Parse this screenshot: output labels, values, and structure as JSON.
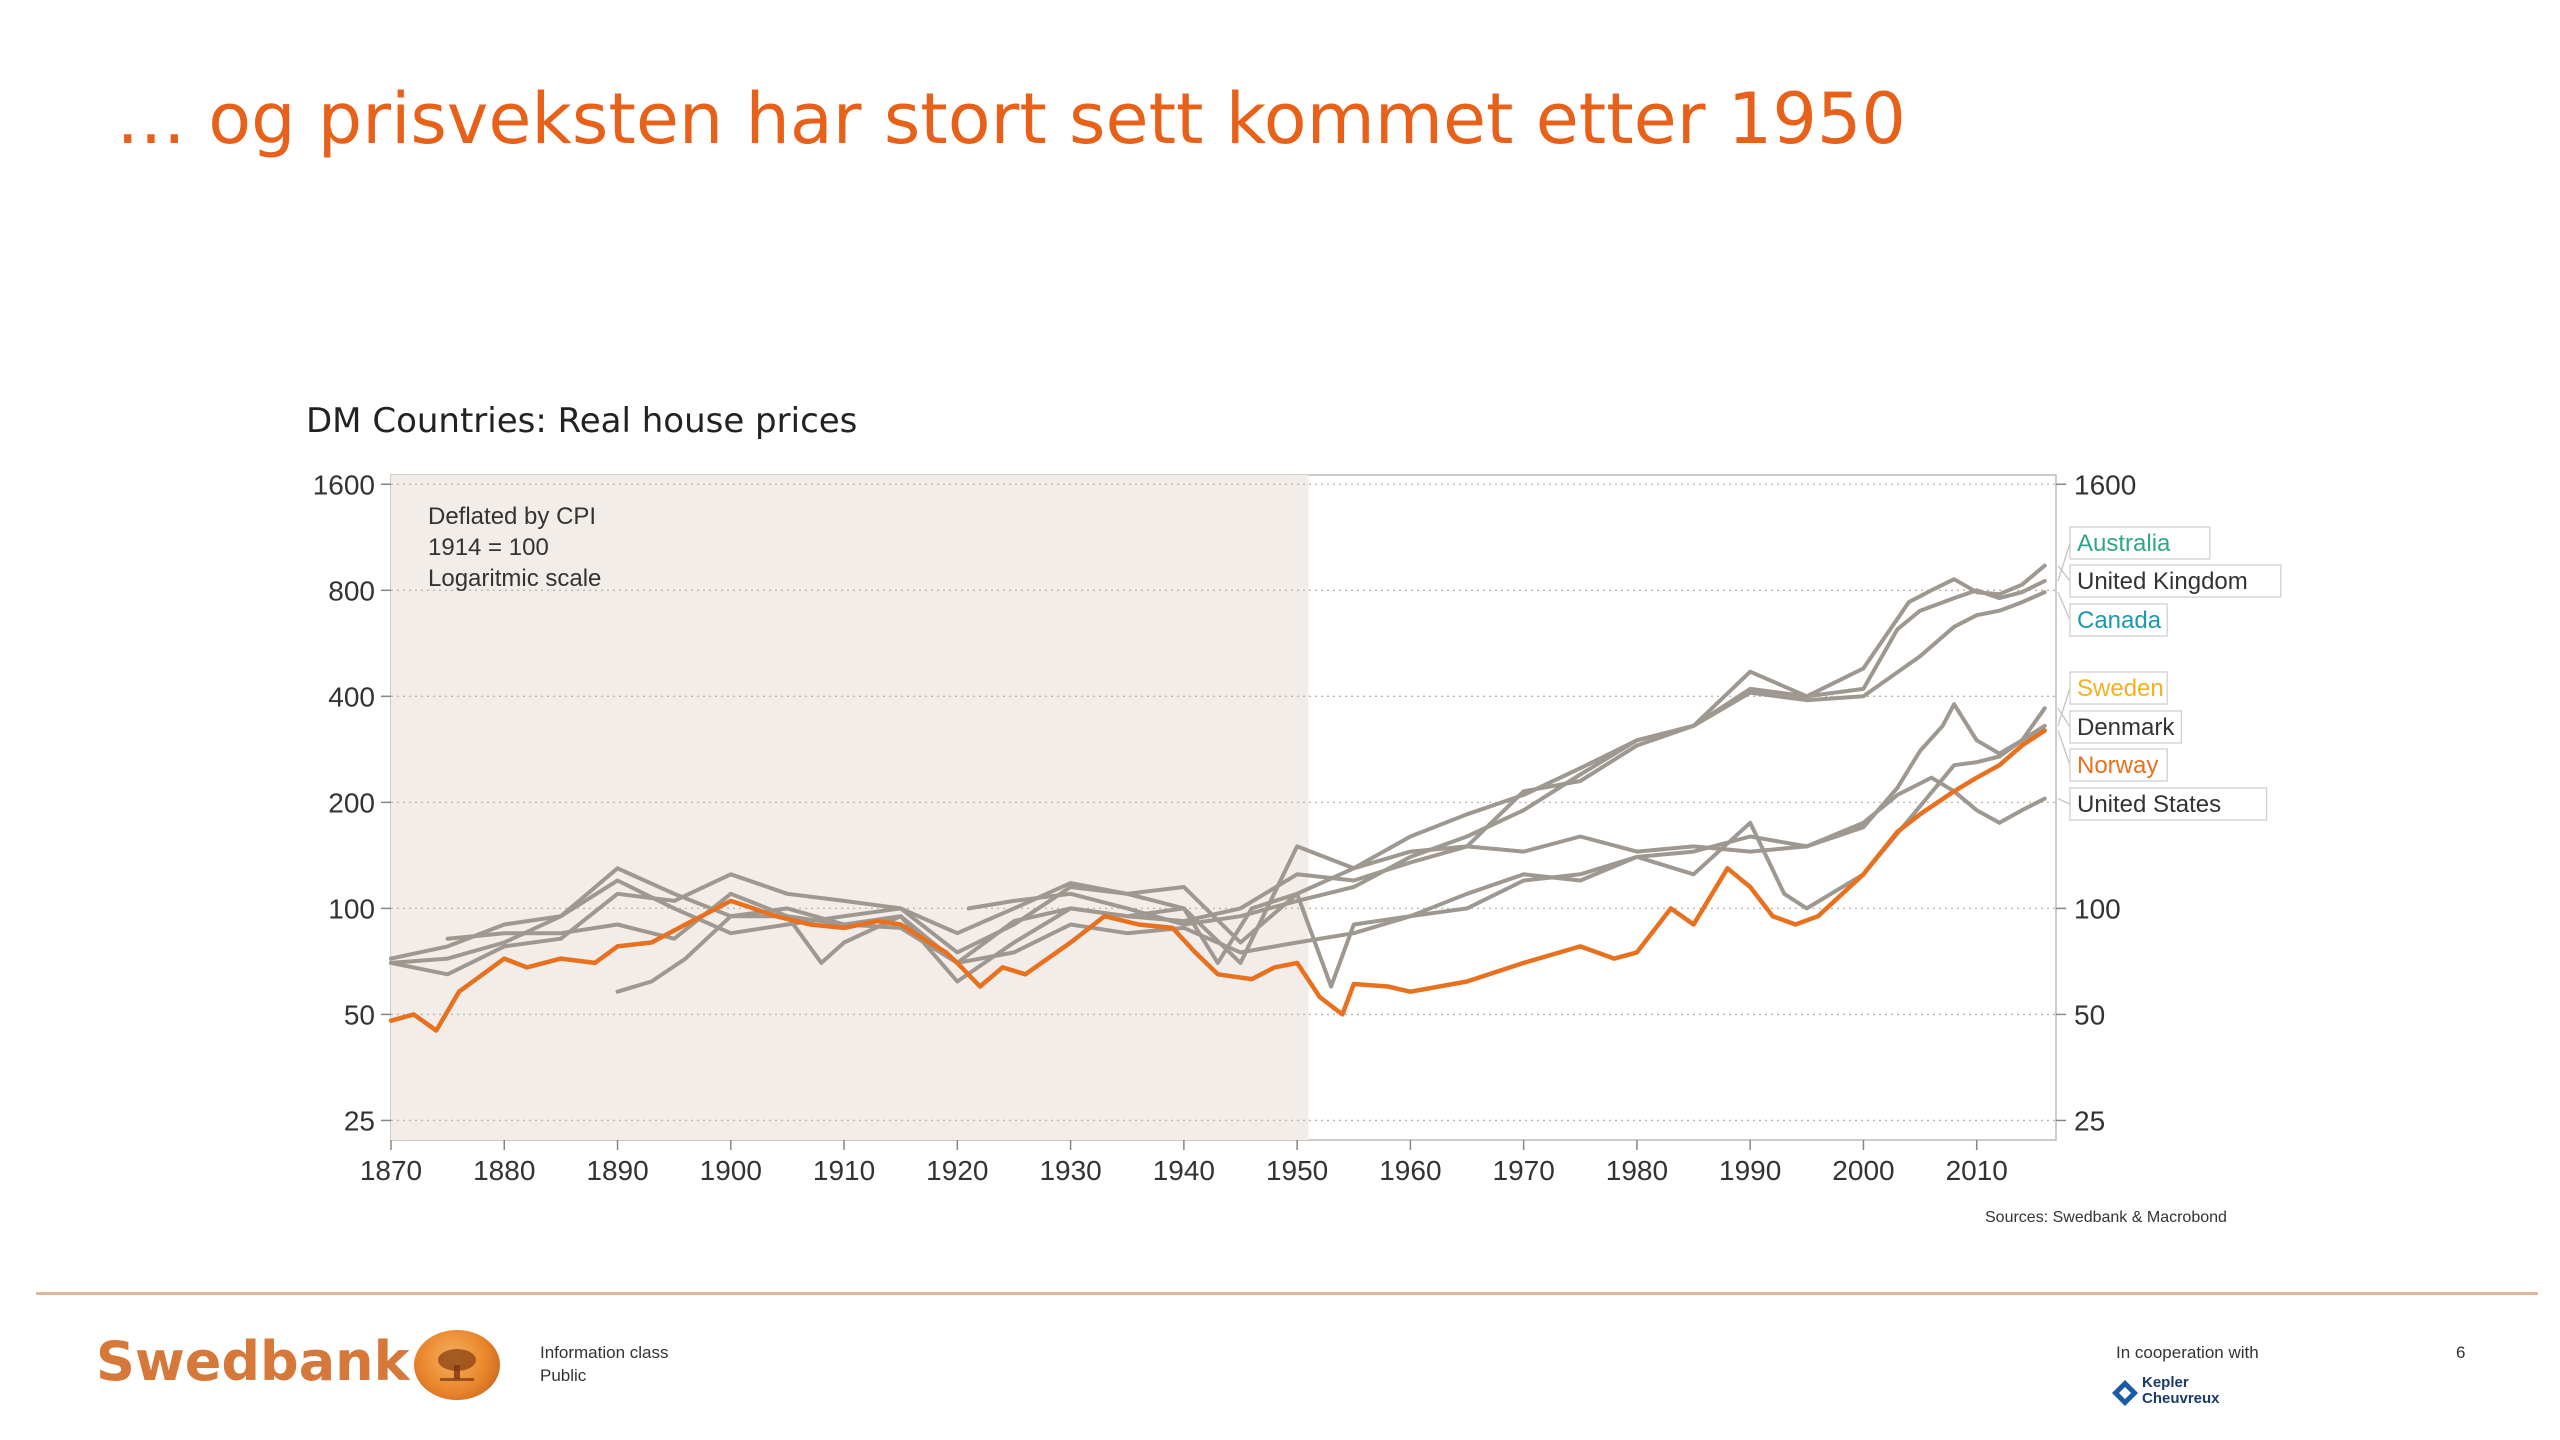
{
  "slide": {
    "title": "… og prisveksten har stort sett kommet etter 1950",
    "page_number": "6"
  },
  "footer": {
    "brand": "Swedbank",
    "info_class_label": "Information class",
    "info_class_value": "Public",
    "cooperation_label": "In cooperation with",
    "partner_name_1": "Kepler",
    "partner_name_2": "Cheuvreux"
  },
  "colors": {
    "title": "#e8611a",
    "norway": "#e8711f",
    "other_countries": "#9e9890",
    "shaded_period": "#f2ede8",
    "australia_label": "#2fa58a",
    "canada_label": "#1b9aaa",
    "sweden_label": "#f2b21f",
    "norway_label": "#e8711f"
  },
  "chart_data": {
    "type": "line",
    "title": "DM Countries: Real house prices",
    "annotation": [
      "Deflated by CPI",
      "1914 = 100",
      "Logaritmic scale"
    ],
    "source": "Sources: Swedbank & Macrobond",
    "xlim": [
      1870,
      2017
    ],
    "x_ticks": [
      1870,
      1880,
      1890,
      1900,
      1910,
      1920,
      1930,
      1940,
      1950,
      1960,
      1970,
      1980,
      1990,
      2000,
      2010
    ],
    "y_scale": "log",
    "ylim": [
      22,
      1700
    ],
    "y_ticks": [
      25,
      50,
      100,
      200,
      400,
      800,
      1600
    ],
    "y_ticks_right": [
      25,
      50,
      100,
      1600
    ],
    "shaded_region": [
      1870,
      1951
    ],
    "grid": "horizontal dotted",
    "legend_position": "right, labels boxed",
    "series": [
      {
        "name": "Australia",
        "x": [
          1870,
          1875,
          1880,
          1885,
          1890,
          1895,
          1900,
          1905,
          1910,
          1915,
          1920,
          1925,
          1930,
          1935,
          1940,
          1945,
          1950,
          1955,
          1960,
          1965,
          1970,
          1975,
          1980,
          1985,
          1990,
          1995,
          2000,
          2003,
          2005,
          2008,
          2010,
          2012,
          2014,
          2016
        ],
        "y": [
          70,
          72,
          80,
          95,
          120,
          100,
          85,
          90,
          95,
          100,
          75,
          90,
          115,
          110,
          100,
          70,
          150,
          130,
          160,
          185,
          210,
          250,
          300,
          330,
          420,
          400,
          420,
          620,
          700,
          760,
          800,
          760,
          790,
          850
        ]
      },
      {
        "name": "United Kingdom",
        "x": [
          1870,
          1875,
          1880,
          1885,
          1890,
          1895,
          1900,
          1905,
          1910,
          1915,
          1920,
          1925,
          1930,
          1935,
          1940,
          1945,
          1950,
          1955,
          1960,
          1965,
          1970,
          1975,
          1980,
          1985,
          1990,
          1995,
          2000,
          2004,
          2006,
          2008,
          2010,
          2012,
          2014,
          2016
        ],
        "y": [
          72,
          78,
          90,
          95,
          130,
          110,
          95,
          100,
          90,
          95,
          62,
          80,
          100,
          95,
          92,
          100,
          125,
          120,
          135,
          150,
          215,
          230,
          290,
          330,
          470,
          400,
          480,
          740,
          800,
          860,
          790,
          780,
          830,
          940
        ]
      },
      {
        "name": "Canada",
        "x": [
          1921,
          1925,
          1930,
          1935,
          1940,
          1945,
          1950,
          1955,
          1960,
          1965,
          1970,
          1975,
          1980,
          1985,
          1990,
          1995,
          2000,
          2005,
          2008,
          2010,
          2012,
          2014,
          2016
        ],
        "y": [
          100,
          105,
          110,
          100,
          90,
          95,
          105,
          115,
          140,
          160,
          190,
          240,
          300,
          330,
          410,
          390,
          400,
          520,
          630,
          680,
          700,
          740,
          790
        ]
      },
      {
        "name": "Sweden",
        "x": [
          1875,
          1880,
          1885,
          1890,
          1895,
          1900,
          1905,
          1910,
          1915,
          1920,
          1925,
          1930,
          1935,
          1940,
          1945,
          1950,
          1955,
          1960,
          1965,
          1970,
          1975,
          1980,
          1985,
          1990,
          1993,
          1995,
          2000,
          2005,
          2008,
          2010,
          2012,
          2014,
          2016
        ],
        "y": [
          82,
          85,
          85,
          90,
          82,
          110,
          95,
          90,
          88,
          70,
          75,
          90,
          85,
          88,
          75,
          80,
          85,
          95,
          110,
          125,
          120,
          140,
          125,
          175,
          110,
          100,
          125,
          195,
          255,
          260,
          270,
          300,
          330
        ]
      },
      {
        "name": "Denmark",
        "x": [
          1870,
          1875,
          1880,
          1885,
          1890,
          1895,
          1900,
          1905,
          1910,
          1915,
          1920,
          1925,
          1930,
          1935,
          1940,
          1945,
          1950,
          1955,
          1960,
          1965,
          1970,
          1975,
          1980,
          1985,
          1990,
          1995,
          2000,
          2003,
          2005,
          2007,
          2008,
          2010,
          2012,
          2014,
          2016
        ],
        "y": [
          70,
          65,
          78,
          82,
          110,
          105,
          125,
          110,
          105,
          100,
          85,
          100,
          118,
          110,
          115,
          80,
          110,
          130,
          145,
          150,
          145,
          160,
          145,
          150,
          145,
          150,
          170,
          220,
          280,
          330,
          380,
          300,
          275,
          300,
          370
        ]
      },
      {
        "name": "Norway",
        "x": [
          1870,
          1872,
          1874,
          1876,
          1880,
          1882,
          1885,
          1888,
          1890,
          1893,
          1896,
          1900,
          1902,
          1904,
          1907,
          1910,
          1913,
          1915,
          1917,
          1919,
          1920,
          1922,
          1924,
          1926,
          1930,
          1933,
          1936,
          1939,
          1941,
          1943,
          1946,
          1948,
          1950,
          1952,
          1954,
          1955,
          1958,
          1960,
          1965,
          1970,
          1975,
          1978,
          1980,
          1983,
          1985,
          1988,
          1990,
          1992,
          1994,
          1996,
          2000,
          2003,
          2005,
          2008,
          2010,
          2012,
          2014,
          2016
        ],
        "y": [
          48,
          50,
          45,
          58,
          72,
          68,
          72,
          70,
          78,
          80,
          90,
          105,
          100,
          95,
          90,
          88,
          92,
          90,
          82,
          75,
          70,
          60,
          68,
          65,
          80,
          95,
          90,
          88,
          75,
          65,
          63,
          68,
          70,
          56,
          50,
          61,
          60,
          58,
          62,
          70,
          78,
          72,
          75,
          100,
          90,
          130,
          115,
          95,
          90,
          95,
          125,
          165,
          185,
          215,
          235,
          255,
          290,
          320
        ]
      },
      {
        "name": "United States",
        "x": [
          1890,
          1893,
          1896,
          1900,
          1905,
          1908,
          1910,
          1915,
          1920,
          1925,
          1930,
          1935,
          1940,
          1943,
          1946,
          1950,
          1953,
          1955,
          1960,
          1965,
          1970,
          1975,
          1980,
          1985,
          1990,
          1995,
          2000,
          2003,
          2006,
          2008,
          2010,
          2012,
          2014,
          2016
        ],
        "y": [
          58,
          62,
          72,
          95,
          95,
          70,
          80,
          95,
          70,
          92,
          100,
          95,
          100,
          70,
          100,
          110,
          60,
          90,
          95,
          100,
          120,
          125,
          140,
          145,
          160,
          150,
          175,
          210,
          235,
          215,
          190,
          175,
          190,
          205
        ]
      }
    ]
  }
}
